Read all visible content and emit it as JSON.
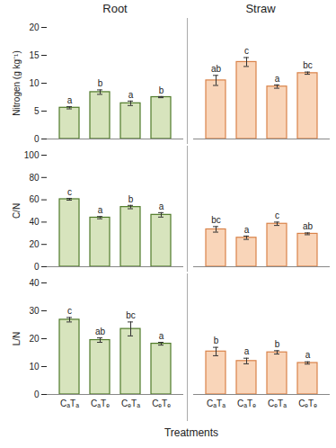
{
  "chart_data": [
    {
      "type": "bar",
      "title": "Root",
      "ylabel": "Nitrogen (g kg⁻¹)",
      "categories": [
        "CₐTₐ",
        "CₐTₑ",
        "CₑTₐ",
        "CₑTₑ"
      ],
      "values": [
        5.6,
        8.4,
        6.4,
        7.5
      ],
      "errors": [
        0.2,
        0.4,
        0.4,
        0.1
      ],
      "annotations": [
        "a",
        "b",
        "a",
        "b"
      ],
      "color": "#d7e4bd",
      "ylim": [
        0,
        20
      ],
      "yticks": [
        0,
        5,
        10,
        15,
        20
      ],
      "tick_labels": "y"
    },
    {
      "type": "bar",
      "title": "Straw",
      "categories": [
        "CₐTₐ",
        "CₐTₑ",
        "CₑTₐ",
        "CₑTₑ"
      ],
      "values": [
        10.5,
        13.8,
        9.4,
        11.8
      ],
      "errors": [
        0.9,
        0.8,
        0.3,
        0.2
      ],
      "annotations": [
        "ab",
        "c",
        "a",
        "bc"
      ],
      "color": "#f9d5b9",
      "ylim": [
        0,
        20
      ],
      "yticks": [
        0,
        5,
        10,
        15,
        20
      ],
      "tick_labels": false
    },
    {
      "type": "bar",
      "ylabel": "C/N",
      "categories": [
        "CₐTₐ",
        "CₐTₑ",
        "CₑTₐ",
        "CₑTₑ"
      ],
      "values": [
        60.5,
        44,
        53.5,
        46.5
      ],
      "errors": [
        0.8,
        1,
        1.5,
        2
      ],
      "annotations": [
        "c",
        "a",
        "b",
        "a"
      ],
      "color": "#d7e4bd",
      "ylim": [
        0,
        100
      ],
      "yticks": [
        0,
        20,
        40,
        60,
        80,
        100
      ],
      "tick_labels": "y"
    },
    {
      "type": "bar",
      "categories": [
        "CₐTₐ",
        "CₐTₑ",
        "CₑTₐ",
        "CₑTₑ"
      ],
      "values": [
        33.5,
        26,
        38.5,
        29.5
      ],
      "errors": [
        2.5,
        1.5,
        1.5,
        0.8
      ],
      "annotations": [
        "bc",
        "a",
        "c",
        "ab"
      ],
      "color": "#f9d5b9",
      "ylim": [
        0,
        100
      ],
      "yticks": [
        0,
        20,
        40,
        60,
        80,
        100
      ],
      "tick_labels": false
    },
    {
      "type": "bar",
      "ylabel": "L/N",
      "xlabel": "Treatments",
      "categories": [
        "CₐTₐ",
        "CₐTₑ",
        "CₑTₐ",
        "CₑTₑ"
      ],
      "values": [
        26.8,
        19.5,
        23.5,
        18.2
      ],
      "errors": [
        0.8,
        0.8,
        2.5,
        0.5
      ],
      "annotations": [
        "c",
        "ab",
        "bc",
        "a"
      ],
      "color": "#d7e4bd",
      "ylim": [
        0,
        40
      ],
      "yticks": [
        0,
        10,
        20,
        30,
        40
      ]
    },
    {
      "type": "bar",
      "categories": [
        "CₐTₐ",
        "CₐTₑ",
        "CₑTₐ",
        "CₑTₑ"
      ],
      "values": [
        15.4,
        12,
        15.1,
        11.3
      ],
      "errors": [
        1.5,
        1,
        0.6,
        0.4
      ],
      "annotations": [
        "b",
        "a",
        "b",
        "a"
      ],
      "color": "#f9d5b9",
      "ylim": [
        0,
        40
      ],
      "yticks": [
        0,
        10,
        20,
        30,
        40
      ],
      "tick_labels": "x"
    }
  ]
}
